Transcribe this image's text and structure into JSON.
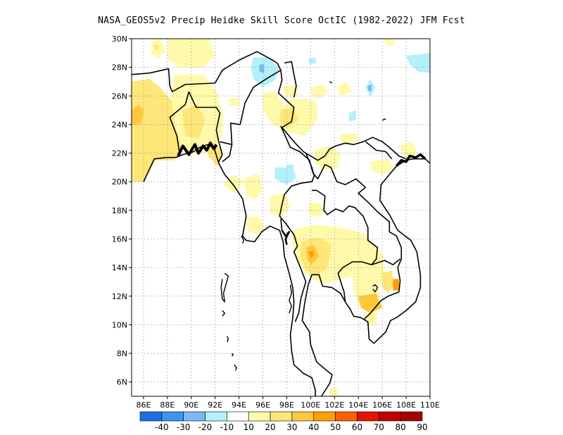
{
  "title": "NASA_GEOS5v2 Precip Heidke Skill Score OctIC (1982-2022) JFM Fcst",
  "map": {
    "lon_range": [
      85,
      110
    ],
    "lat_range": [
      5,
      30
    ],
    "lon_ticks": [
      "86E",
      "88E",
      "90E",
      "92E",
      "94E",
      "96E",
      "98E",
      "100E",
      "102E",
      "104E",
      "106E",
      "108E",
      "110E"
    ],
    "lat_ticks": [
      "6N",
      "8N",
      "10N",
      "12N",
      "14N",
      "16N",
      "18N",
      "20N",
      "22N",
      "24N",
      "26N",
      "28N",
      "30N"
    ],
    "grid": "dotted"
  },
  "colorbar": {
    "labels": [
      "-40",
      "-30",
      "-20",
      "-10",
      "10",
      "20",
      "30",
      "40",
      "50",
      "60",
      "70",
      "80",
      "90"
    ],
    "colors": [
      "#1e6ee6",
      "#3c96f0",
      "#78b9f7",
      "#b4f0fa",
      "#ffffff",
      "#fffaaa",
      "#ffe678",
      "#ffc83c",
      "#ffa000",
      "#ff6000",
      "#e11400",
      "#c00000",
      "#a50000"
    ]
  }
}
